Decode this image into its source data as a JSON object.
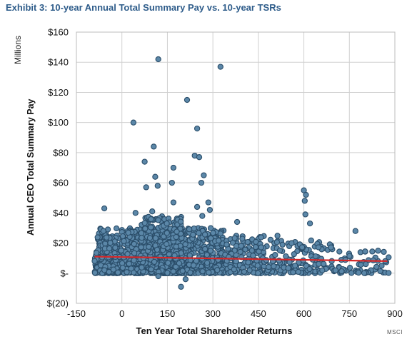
{
  "title": "Exhibit 3: 10-year Annual Total Summary Pay vs. 10-year TSRs",
  "units_label": "Millions",
  "source": "MSCI",
  "chart_data": {
    "type": "scatter",
    "title": "Exhibit 3: 10-year Annual Total Summary Pay vs. 10-year TSRs",
    "xlabel": "Ten Year Total Shareholder Returns",
    "ylabel": "Annual CEO Total Summary Pay",
    "y_units": "Millions",
    "xlim": [
      -150,
      900
    ],
    "ylim": [
      -20,
      160
    ],
    "x_ticks": [
      -150,
      0,
      150,
      300,
      450,
      600,
      750,
      900
    ],
    "x_tick_labels": [
      "-150",
      "0",
      "150",
      "300",
      "450",
      "600",
      "750",
      "900"
    ],
    "y_ticks": [
      -20,
      0,
      20,
      40,
      60,
      80,
      100,
      120,
      140,
      160
    ],
    "y_tick_labels": [
      "$(20)",
      "$-",
      "$20",
      "$40",
      "$60",
      "$80",
      "$100",
      "$120",
      "$140",
      "$160"
    ],
    "grid": true,
    "marker_color": "#2a4d69",
    "marker_fill": "#5b87a8",
    "trendline": {
      "x": [
        -90,
        875
      ],
      "y": [
        11,
        8
      ],
      "color": "#d62728"
    },
    "outliers": [
      [
        120,
        142
      ],
      [
        325,
        137
      ],
      [
        215,
        115
      ],
      [
        38,
        100
      ],
      [
        248,
        96
      ],
      [
        105,
        84
      ],
      [
        240,
        78
      ],
      [
        255,
        77
      ],
      [
        75,
        74
      ],
      [
        170,
        70
      ],
      [
        270,
        65
      ],
      [
        110,
        64
      ],
      [
        80,
        57
      ],
      [
        118,
        58
      ],
      [
        262,
        60
      ],
      [
        165,
        60
      ],
      [
        600,
        55
      ],
      [
        607,
        52
      ],
      [
        603,
        48
      ],
      [
        170,
        47
      ],
      [
        285,
        47
      ],
      [
        290,
        42
      ],
      [
        605,
        39
      ],
      [
        -58,
        43
      ],
      [
        248,
        44
      ],
      [
        45,
        40
      ],
      [
        100,
        41
      ],
      [
        265,
        38
      ],
      [
        620,
        33
      ],
      [
        770,
        28
      ],
      [
        195,
        -9
      ],
      [
        210,
        -4
      ],
      [
        120,
        -2
      ],
      [
        148,
        33
      ],
      [
        380,
        34
      ]
    ],
    "dense_clusters": [
      {
        "x_range": [
          -90,
          340
        ],
        "y_range": [
          0,
          30
        ],
        "count": 1100
      },
      {
        "x_range": [
          60,
          200
        ],
        "y_range": [
          0,
          38
        ],
        "count": 300
      },
      {
        "x_range": [
          340,
          540
        ],
        "y_range": [
          0,
          25
        ],
        "count": 180
      },
      {
        "x_range": [
          540,
          700
        ],
        "y_range": [
          0,
          22
        ],
        "count": 90
      },
      {
        "x_range": [
          700,
          880
        ],
        "y_range": [
          0,
          15
        ],
        "count": 55
      }
    ]
  }
}
